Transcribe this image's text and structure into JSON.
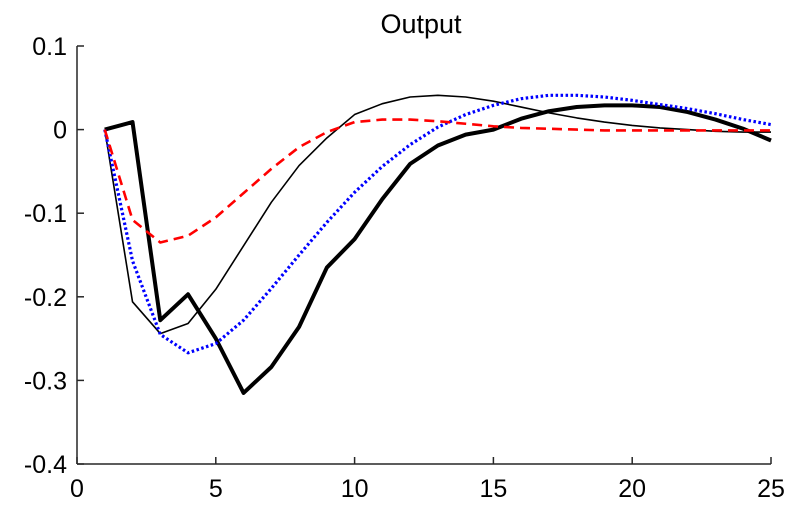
{
  "chart_data": {
    "type": "line",
    "title": "Output",
    "xlabel": "",
    "ylabel": "",
    "xlim": [
      0,
      25
    ],
    "ylim": [
      -0.4,
      0.1
    ],
    "xticks": [
      0,
      5,
      10,
      15,
      20,
      25
    ],
    "xtick_labels": [
      "0",
      "5",
      "10",
      "15",
      "20",
      "25"
    ],
    "yticks": [
      -0.4,
      -0.3,
      -0.2,
      -0.1,
      0,
      0.1
    ],
    "ytick_labels": [
      "-0.4",
      "-0.3",
      "-0.2",
      "-0.1",
      "0",
      "0.1"
    ],
    "grid": false,
    "legend": "none",
    "series": [
      {
        "style": "thick-solid",
        "color": "#000000",
        "x": [
          1,
          2,
          3,
          4,
          5,
          6,
          7,
          8,
          9,
          10,
          11,
          12,
          13,
          14,
          15,
          16,
          17,
          18,
          19,
          20,
          21,
          22,
          23,
          24,
          25
        ],
        "values": [
          0,
          0.009,
          -0.228,
          -0.197,
          -0.25,
          -0.315,
          -0.284,
          -0.236,
          -0.165,
          -0.131,
          -0.083,
          -0.041,
          -0.019,
          -0.006,
          0.0,
          0.013,
          0.022,
          0.027,
          0.029,
          0.029,
          0.027,
          0.021,
          0.012,
          0.001,
          -0.013
        ]
      },
      {
        "style": "thin-solid",
        "color": "#000000",
        "x": [
          1,
          2,
          3,
          4,
          5,
          6,
          7,
          8,
          9,
          10,
          11,
          12,
          13,
          14,
          15,
          16,
          17,
          18,
          19,
          20,
          21,
          22,
          23,
          24,
          25
        ],
        "values": [
          0,
          -0.206,
          -0.244,
          -0.232,
          -0.191,
          -0.139,
          -0.087,
          -0.043,
          -0.01,
          0.018,
          0.031,
          0.039,
          0.041,
          0.039,
          0.034,
          0.027,
          0.02,
          0.014,
          0.009,
          0.005,
          0.002,
          0.0,
          -0.002,
          -0.003,
          -0.003
        ]
      },
      {
        "style": "dotted",
        "color": "#0000ff",
        "x": [
          1,
          2,
          3,
          4,
          5,
          6,
          7,
          8,
          9,
          10,
          11,
          12,
          13,
          14,
          15,
          16,
          17,
          18,
          19,
          20,
          21,
          22,
          23,
          24,
          25
        ],
        "values": [
          0,
          -0.157,
          -0.245,
          -0.267,
          -0.256,
          -0.228,
          -0.19,
          -0.15,
          -0.111,
          -0.075,
          -0.044,
          -0.018,
          0.003,
          0.018,
          0.029,
          0.037,
          0.041,
          0.041,
          0.039,
          0.035,
          0.03,
          0.025,
          0.019,
          0.012,
          0.006
        ]
      },
      {
        "style": "dashed",
        "color": "#ff0000",
        "x": [
          1,
          2,
          3,
          4,
          5,
          6,
          7,
          8,
          9,
          10,
          11,
          12,
          13,
          14,
          15,
          16,
          17,
          18,
          19,
          20,
          21,
          22,
          23,
          24,
          25
        ],
        "values": [
          0,
          -0.108,
          -0.135,
          -0.127,
          -0.105,
          -0.076,
          -0.047,
          -0.021,
          -0.003,
          0.009,
          0.012,
          0.012,
          0.01,
          0.007,
          0.004,
          0.002,
          0.001,
          0.0,
          -0.001,
          -0.001,
          -0.001,
          -0.001,
          -0.001,
          -0.001,
          -0.001
        ]
      }
    ]
  }
}
